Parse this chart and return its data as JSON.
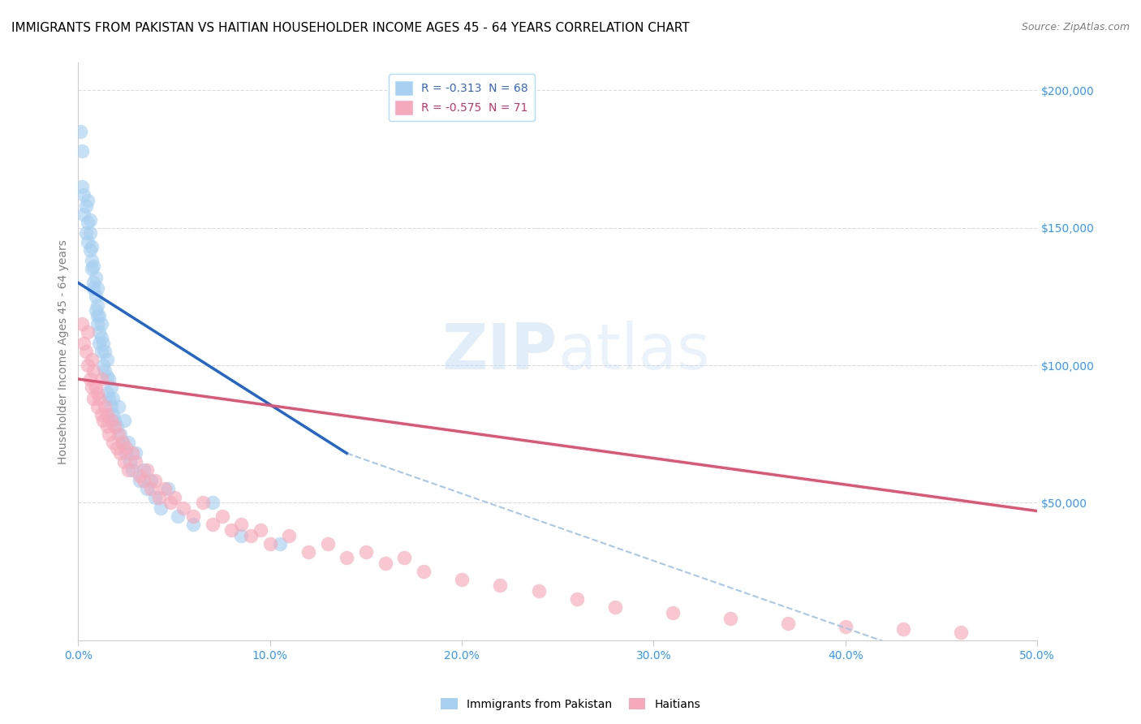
{
  "title": "IMMIGRANTS FROM PAKISTAN VS HAITIAN HOUSEHOLDER INCOME AGES 45 - 64 YEARS CORRELATION CHART",
  "source": "Source: ZipAtlas.com",
  "ylabel": "Householder Income Ages 45 - 64 years",
  "xlim": [
    0,
    0.5
  ],
  "ylim": [
    0,
    210000
  ],
  "pakistan_color": "#A8D0F0",
  "haiti_color": "#F5AABB",
  "pakistan_line_color": "#2266CC",
  "haiti_line_color": "#E05575",
  "dashed_line_color": "#A8C8E8",
  "pakistan_R": -0.313,
  "pakistan_N": 68,
  "haiti_R": -0.575,
  "haiti_N": 71,
  "background_color": "#FFFFFF",
  "legend_label_pakistan": "Immigrants from Pakistan",
  "legend_label_haiti": "Haitians",
  "pakistan_scatter_x": [
    0.001,
    0.002,
    0.002,
    0.003,
    0.003,
    0.004,
    0.004,
    0.005,
    0.005,
    0.005,
    0.006,
    0.006,
    0.006,
    0.007,
    0.007,
    0.007,
    0.008,
    0.008,
    0.008,
    0.009,
    0.009,
    0.009,
    0.01,
    0.01,
    0.01,
    0.01,
    0.011,
    0.011,
    0.011,
    0.012,
    0.012,
    0.012,
    0.013,
    0.013,
    0.014,
    0.014,
    0.015,
    0.015,
    0.015,
    0.016,
    0.016,
    0.017,
    0.017,
    0.018,
    0.018,
    0.019,
    0.02,
    0.021,
    0.022,
    0.023,
    0.024,
    0.025,
    0.026,
    0.027,
    0.028,
    0.03,
    0.032,
    0.034,
    0.036,
    0.038,
    0.04,
    0.043,
    0.047,
    0.052,
    0.06,
    0.07,
    0.085,
    0.105
  ],
  "pakistan_scatter_y": [
    185000,
    165000,
    178000,
    162000,
    155000,
    158000,
    148000,
    152000,
    145000,
    160000,
    142000,
    148000,
    153000,
    138000,
    143000,
    135000,
    130000,
    136000,
    128000,
    125000,
    132000,
    120000,
    118000,
    122000,
    115000,
    128000,
    112000,
    118000,
    108000,
    115000,
    110000,
    105000,
    108000,
    100000,
    105000,
    98000,
    102000,
    96000,
    90000,
    95000,
    88000,
    92000,
    85000,
    88000,
    82000,
    80000,
    78000,
    85000,
    75000,
    72000,
    80000,
    68000,
    72000,
    65000,
    62000,
    68000,
    58000,
    62000,
    55000,
    58000,
    52000,
    48000,
    55000,
    45000,
    42000,
    50000,
    38000,
    35000
  ],
  "haiti_scatter_x": [
    0.002,
    0.003,
    0.004,
    0.005,
    0.005,
    0.006,
    0.007,
    0.007,
    0.008,
    0.008,
    0.009,
    0.01,
    0.01,
    0.011,
    0.012,
    0.012,
    0.013,
    0.014,
    0.015,
    0.015,
    0.016,
    0.017,
    0.018,
    0.019,
    0.02,
    0.021,
    0.022,
    0.023,
    0.024,
    0.025,
    0.026,
    0.028,
    0.03,
    0.032,
    0.034,
    0.036,
    0.038,
    0.04,
    0.042,
    0.045,
    0.048,
    0.05,
    0.055,
    0.06,
    0.065,
    0.07,
    0.075,
    0.08,
    0.085,
    0.09,
    0.095,
    0.1,
    0.11,
    0.12,
    0.13,
    0.14,
    0.15,
    0.16,
    0.17,
    0.18,
    0.2,
    0.22,
    0.24,
    0.26,
    0.28,
    0.31,
    0.34,
    0.37,
    0.4,
    0.43,
    0.46
  ],
  "haiti_scatter_y": [
    115000,
    108000,
    105000,
    100000,
    112000,
    95000,
    102000,
    92000,
    98000,
    88000,
    92000,
    90000,
    85000,
    88000,
    82000,
    95000,
    80000,
    85000,
    78000,
    82000,
    75000,
    80000,
    72000,
    78000,
    70000,
    75000,
    68000,
    72000,
    65000,
    70000,
    62000,
    68000,
    65000,
    60000,
    58000,
    62000,
    55000,
    58000,
    52000,
    55000,
    50000,
    52000,
    48000,
    45000,
    50000,
    42000,
    45000,
    40000,
    42000,
    38000,
    40000,
    35000,
    38000,
    32000,
    35000,
    30000,
    32000,
    28000,
    30000,
    25000,
    22000,
    20000,
    18000,
    15000,
    12000,
    10000,
    8000,
    6000,
    5000,
    4000,
    3000
  ],
  "pakistan_line_x": [
    0.0,
    0.14
  ],
  "pakistan_line_y": [
    130000,
    68000
  ],
  "haiti_line_x": [
    0.0,
    0.5
  ],
  "haiti_line_y": [
    95000,
    47000
  ],
  "dashed_line_x": [
    0.14,
    0.5
  ],
  "dashed_line_y": [
    68000,
    -20000
  ],
  "title_fontsize": 11,
  "axis_label_fontsize": 10,
  "tick_fontsize": 10,
  "legend_fontsize": 10
}
